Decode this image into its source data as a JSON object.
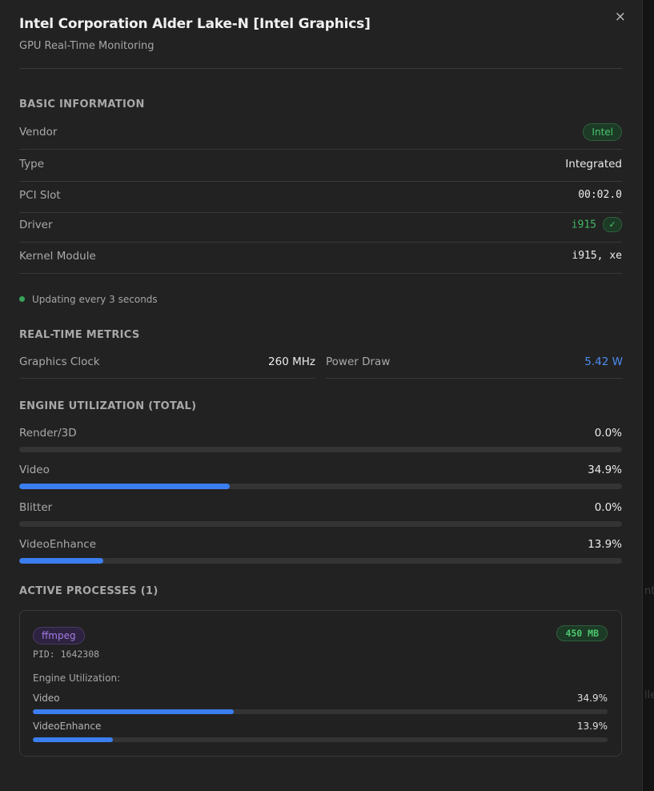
{
  "modal": {
    "title": "Intel Corporation Alder Lake-N [Intel Graphics]",
    "subtitle": "GPU Real-Time Monitoring",
    "close_symbol": "×"
  },
  "basic": {
    "section_title": "BASIC INFORMATION",
    "vendor_label": "Vendor",
    "vendor_value": "Intel",
    "type_label": "Type",
    "type_value": "Integrated",
    "pci_label": "PCI Slot",
    "pci_value": "00:02.0",
    "driver_label": "Driver",
    "driver_value": "i915",
    "kernel_label": "Kernel Module",
    "kernel_value": "i915, xe"
  },
  "status": {
    "update_text": "Updating every 3 seconds"
  },
  "metrics": {
    "section_title": "REAL-TIME METRICS",
    "clock_label": "Graphics Clock",
    "clock_value": "260 MHz",
    "power_label": "Power Draw",
    "power_value": "5.42 W"
  },
  "engines": {
    "section_title": "ENGINE UTILIZATION (TOTAL)",
    "items": [
      {
        "label": "Render/3D",
        "value": "0.0%",
        "percent": 0.0
      },
      {
        "label": "Video",
        "value": "34.9%",
        "percent": 34.9
      },
      {
        "label": "Blitter",
        "value": "0.0%",
        "percent": 0.0
      },
      {
        "label": "VideoEnhance",
        "value": "13.9%",
        "percent": 13.9
      }
    ]
  },
  "processes": {
    "section_title": "ACTIVE PROCESSES (1)",
    "items": [
      {
        "name": "ffmpeg",
        "memory": "450 MB",
        "pid": "PID: 1642308",
        "engine_label": "Engine Utilization:",
        "engines": [
          {
            "label": "Video",
            "value": "34.9%",
            "percent": 34.9
          },
          {
            "label": "VideoEnhance",
            "value": "13.9%",
            "percent": 13.9
          }
        ]
      }
    ]
  },
  "background": {
    "fragment_1": "nt",
    "fragment_2": "lle"
  },
  "colors": {
    "accent_blue": "#3b7ef0",
    "success_green": "#3fba62",
    "process_purple": "#a57ae6"
  }
}
